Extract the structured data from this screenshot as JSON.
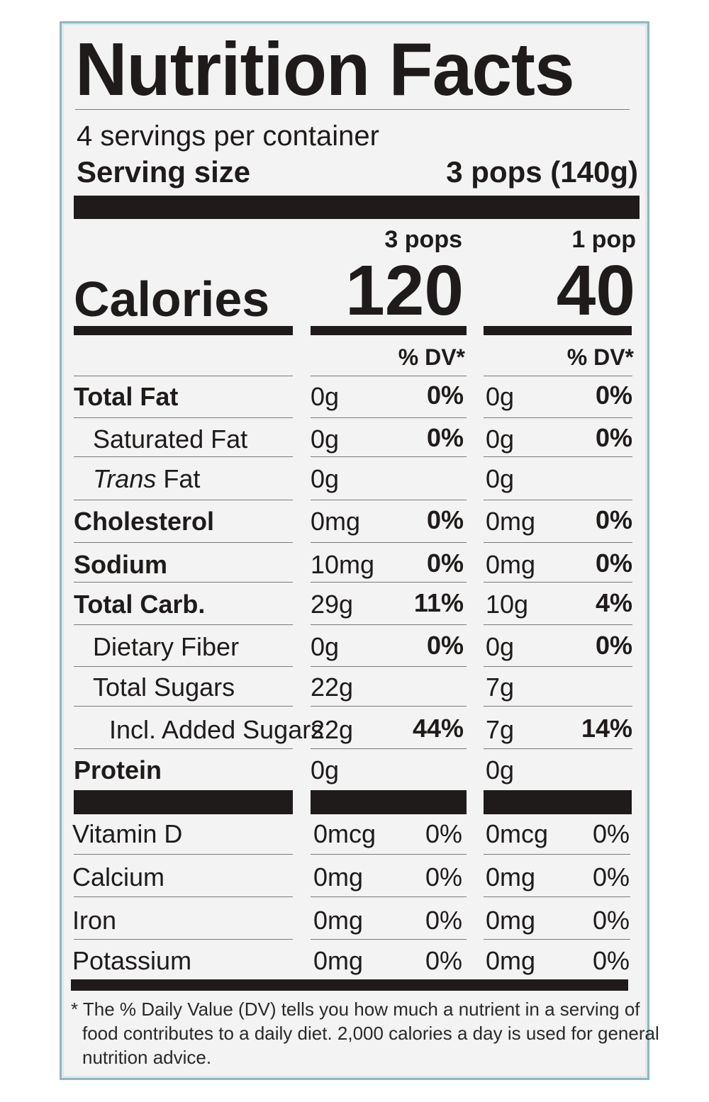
{
  "title": "Nutrition Facts",
  "servings_per_container": "4 servings per container",
  "serving_size_label": "Serving size",
  "serving_size_value": "3 pops (140g)",
  "calories_label": "Calories",
  "columns": [
    {
      "header": "3 pops",
      "calories": "120",
      "dv_header": "% DV*"
    },
    {
      "header": "1 pop",
      "calories": "40",
      "dv_header": "% DV*"
    }
  ],
  "nutrients": [
    {
      "label": "Total Fat",
      "col1_amount": "0g",
      "col1_dv": "0%",
      "col2_amount": "0g",
      "col2_dv": "0%"
    },
    {
      "label": "Saturated Fat",
      "col1_amount": "0g",
      "col1_dv": "0%",
      "col2_amount": "0g",
      "col2_dv": "0%"
    },
    {
      "label_italic": "Trans",
      "label": " Fat",
      "col1_amount": "0g",
      "col1_dv": "",
      "col2_amount": "0g",
      "col2_dv": ""
    },
    {
      "label": "Cholesterol",
      "col1_amount": "0mg",
      "col1_dv": "0%",
      "col2_amount": "0mg",
      "col2_dv": "0%"
    },
    {
      "label": "Sodium",
      "col1_amount": "10mg",
      "col1_dv": "0%",
      "col2_amount": "0mg",
      "col2_dv": "0%"
    },
    {
      "label": "Total Carb.",
      "col1_amount": "29g",
      "col1_dv": "11%",
      "col2_amount": "10g",
      "col2_dv": "4%"
    },
    {
      "label": "Dietary Fiber",
      "col1_amount": "0g",
      "col1_dv": "0%",
      "col2_amount": "0g",
      "col2_dv": "0%"
    },
    {
      "label": "Total Sugars",
      "col1_amount": "22g",
      "col1_dv": "",
      "col2_amount": "7g",
      "col2_dv": ""
    },
    {
      "label": "Incl. Added Sugars",
      "col1_amount": "22g",
      "col1_dv": "44%",
      "col2_amount": "7g",
      "col2_dv": "14%"
    },
    {
      "label": "Protein",
      "col1_amount": "0g",
      "col1_dv": "",
      "col2_amount": "0g",
      "col2_dv": ""
    }
  ],
  "vitamins": [
    {
      "label": "Vitamin D",
      "col1_amount": "0mcg",
      "col1_dv": "0%",
      "col2_amount": "0mcg",
      "col2_dv": "0%"
    },
    {
      "label": "Calcium",
      "col1_amount": "0mg",
      "col1_dv": "0%",
      "col2_amount": "0mg",
      "col2_dv": "0%"
    },
    {
      "label": "Iron",
      "col1_amount": "0mg",
      "col1_dv": "0%",
      "col2_amount": "0mg",
      "col2_dv": "0%"
    },
    {
      "label": "Potassium",
      "col1_amount": "0mg",
      "col1_dv": "0%",
      "col2_amount": "0mg",
      "col2_dv": "0%"
    }
  ],
  "footnote": {
    "line1": "* The % Daily Value (DV) tells you how much a nutrient in a serving of",
    "line2": "food contributes to a daily diet. 2,000 calories a day is used for general",
    "line3": "nutrition advice."
  }
}
